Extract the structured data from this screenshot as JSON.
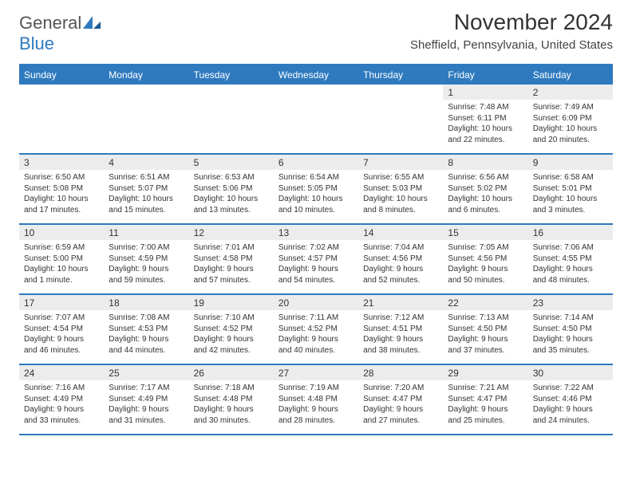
{
  "logo": {
    "text1": "General",
    "text2": "Blue"
  },
  "title": "November 2024",
  "location": "Sheffield, Pennsylvania, United States",
  "dayheaders": [
    "Sunday",
    "Monday",
    "Tuesday",
    "Wednesday",
    "Thursday",
    "Friday",
    "Saturday"
  ],
  "colors": {
    "brand": "#2f7abf",
    "header_text": "#ffffff",
    "band": "#ececec",
    "body_text": "#333333"
  },
  "weeks": [
    [
      {
        "n": "",
        "sr": "",
        "ss": "",
        "dl": ""
      },
      {
        "n": "",
        "sr": "",
        "ss": "",
        "dl": ""
      },
      {
        "n": "",
        "sr": "",
        "ss": "",
        "dl": ""
      },
      {
        "n": "",
        "sr": "",
        "ss": "",
        "dl": ""
      },
      {
        "n": "",
        "sr": "",
        "ss": "",
        "dl": ""
      },
      {
        "n": "1",
        "sr": "Sunrise: 7:48 AM",
        "ss": "Sunset: 6:11 PM",
        "dl": "Daylight: 10 hours and 22 minutes."
      },
      {
        "n": "2",
        "sr": "Sunrise: 7:49 AM",
        "ss": "Sunset: 6:09 PM",
        "dl": "Daylight: 10 hours and 20 minutes."
      }
    ],
    [
      {
        "n": "3",
        "sr": "Sunrise: 6:50 AM",
        "ss": "Sunset: 5:08 PM",
        "dl": "Daylight: 10 hours and 17 minutes."
      },
      {
        "n": "4",
        "sr": "Sunrise: 6:51 AM",
        "ss": "Sunset: 5:07 PM",
        "dl": "Daylight: 10 hours and 15 minutes."
      },
      {
        "n": "5",
        "sr": "Sunrise: 6:53 AM",
        "ss": "Sunset: 5:06 PM",
        "dl": "Daylight: 10 hours and 13 minutes."
      },
      {
        "n": "6",
        "sr": "Sunrise: 6:54 AM",
        "ss": "Sunset: 5:05 PM",
        "dl": "Daylight: 10 hours and 10 minutes."
      },
      {
        "n": "7",
        "sr": "Sunrise: 6:55 AM",
        "ss": "Sunset: 5:03 PM",
        "dl": "Daylight: 10 hours and 8 minutes."
      },
      {
        "n": "8",
        "sr": "Sunrise: 6:56 AM",
        "ss": "Sunset: 5:02 PM",
        "dl": "Daylight: 10 hours and 6 minutes."
      },
      {
        "n": "9",
        "sr": "Sunrise: 6:58 AM",
        "ss": "Sunset: 5:01 PM",
        "dl": "Daylight: 10 hours and 3 minutes."
      }
    ],
    [
      {
        "n": "10",
        "sr": "Sunrise: 6:59 AM",
        "ss": "Sunset: 5:00 PM",
        "dl": "Daylight: 10 hours and 1 minute."
      },
      {
        "n": "11",
        "sr": "Sunrise: 7:00 AM",
        "ss": "Sunset: 4:59 PM",
        "dl": "Daylight: 9 hours and 59 minutes."
      },
      {
        "n": "12",
        "sr": "Sunrise: 7:01 AM",
        "ss": "Sunset: 4:58 PM",
        "dl": "Daylight: 9 hours and 57 minutes."
      },
      {
        "n": "13",
        "sr": "Sunrise: 7:02 AM",
        "ss": "Sunset: 4:57 PM",
        "dl": "Daylight: 9 hours and 54 minutes."
      },
      {
        "n": "14",
        "sr": "Sunrise: 7:04 AM",
        "ss": "Sunset: 4:56 PM",
        "dl": "Daylight: 9 hours and 52 minutes."
      },
      {
        "n": "15",
        "sr": "Sunrise: 7:05 AM",
        "ss": "Sunset: 4:56 PM",
        "dl": "Daylight: 9 hours and 50 minutes."
      },
      {
        "n": "16",
        "sr": "Sunrise: 7:06 AM",
        "ss": "Sunset: 4:55 PM",
        "dl": "Daylight: 9 hours and 48 minutes."
      }
    ],
    [
      {
        "n": "17",
        "sr": "Sunrise: 7:07 AM",
        "ss": "Sunset: 4:54 PM",
        "dl": "Daylight: 9 hours and 46 minutes."
      },
      {
        "n": "18",
        "sr": "Sunrise: 7:08 AM",
        "ss": "Sunset: 4:53 PM",
        "dl": "Daylight: 9 hours and 44 minutes."
      },
      {
        "n": "19",
        "sr": "Sunrise: 7:10 AM",
        "ss": "Sunset: 4:52 PM",
        "dl": "Daylight: 9 hours and 42 minutes."
      },
      {
        "n": "20",
        "sr": "Sunrise: 7:11 AM",
        "ss": "Sunset: 4:52 PM",
        "dl": "Daylight: 9 hours and 40 minutes."
      },
      {
        "n": "21",
        "sr": "Sunrise: 7:12 AM",
        "ss": "Sunset: 4:51 PM",
        "dl": "Daylight: 9 hours and 38 minutes."
      },
      {
        "n": "22",
        "sr": "Sunrise: 7:13 AM",
        "ss": "Sunset: 4:50 PM",
        "dl": "Daylight: 9 hours and 37 minutes."
      },
      {
        "n": "23",
        "sr": "Sunrise: 7:14 AM",
        "ss": "Sunset: 4:50 PM",
        "dl": "Daylight: 9 hours and 35 minutes."
      }
    ],
    [
      {
        "n": "24",
        "sr": "Sunrise: 7:16 AM",
        "ss": "Sunset: 4:49 PM",
        "dl": "Daylight: 9 hours and 33 minutes."
      },
      {
        "n": "25",
        "sr": "Sunrise: 7:17 AM",
        "ss": "Sunset: 4:49 PM",
        "dl": "Daylight: 9 hours and 31 minutes."
      },
      {
        "n": "26",
        "sr": "Sunrise: 7:18 AM",
        "ss": "Sunset: 4:48 PM",
        "dl": "Daylight: 9 hours and 30 minutes."
      },
      {
        "n": "27",
        "sr": "Sunrise: 7:19 AM",
        "ss": "Sunset: 4:48 PM",
        "dl": "Daylight: 9 hours and 28 minutes."
      },
      {
        "n": "28",
        "sr": "Sunrise: 7:20 AM",
        "ss": "Sunset: 4:47 PM",
        "dl": "Daylight: 9 hours and 27 minutes."
      },
      {
        "n": "29",
        "sr": "Sunrise: 7:21 AM",
        "ss": "Sunset: 4:47 PM",
        "dl": "Daylight: 9 hours and 25 minutes."
      },
      {
        "n": "30",
        "sr": "Sunrise: 7:22 AM",
        "ss": "Sunset: 4:46 PM",
        "dl": "Daylight: 9 hours and 24 minutes."
      }
    ]
  ]
}
